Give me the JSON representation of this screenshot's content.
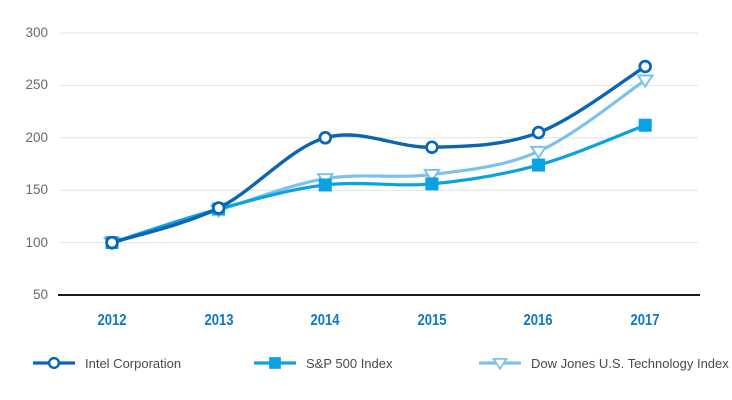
{
  "chart_data": {
    "type": "line",
    "categories": [
      "2012",
      "2013",
      "2014",
      "2015",
      "2016",
      "2017"
    ],
    "series": [
      {
        "name": "Intel Corporation",
        "values": [
          100,
          133,
          200,
          191,
          205,
          268
        ],
        "color": "#0a65b2",
        "marker": "open-circle",
        "line_width": 3.4
      },
      {
        "name": "S&P 500 Index",
        "values": [
          100,
          132,
          155,
          156,
          174,
          212
        ],
        "color": "#09a2e3",
        "marker": "filled-square",
        "line_width": 3.2
      },
      {
        "name": "Dow Jones U.S. Technology Index",
        "values": [
          100,
          131,
          161,
          165,
          187,
          255
        ],
        "color": "#7ec2ec",
        "marker": "open-triangle-down",
        "line_width": 3.2
      }
    ],
    "ylim": [
      50,
      300
    ],
    "y_ticks": [
      300,
      250,
      200,
      150,
      100,
      50
    ],
    "grid": "horizontal",
    "legend_position": "bottom",
    "style": {
      "x_label_color": "#0d78c5",
      "y_label_color": "#6a6a6a",
      "legend_text_color": "#4a4a4a",
      "gridline_color": "#e2e2e2",
      "axis_line_color": "#1b1b1b",
      "background": "#ffffff"
    }
  }
}
